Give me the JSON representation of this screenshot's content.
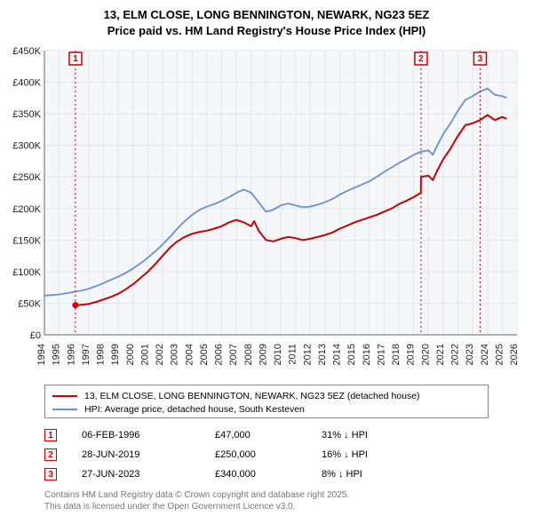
{
  "title_line1": "13, ELM CLOSE, LONG BENNINGTON, NEWARK, NG23 5EZ",
  "title_line2": "Price paid vs. HM Land Registry's House Price Index (HPI)",
  "chart": {
    "type": "line",
    "background_color": "#ffffff",
    "plot_bg_color": "#f5f7fa",
    "grid_color": "#e3e6ea",
    "axis_color": "#666666",
    "tick_font_size": 11,
    "x_years": [
      1994,
      1995,
      1996,
      1997,
      1998,
      1999,
      2000,
      2001,
      2002,
      2003,
      2004,
      2005,
      2006,
      2007,
      2008,
      2009,
      2010,
      2011,
      2012,
      2013,
      2014,
      2015,
      2016,
      2017,
      2018,
      2019,
      2020,
      2021,
      2022,
      2023,
      2024,
      2025,
      2026
    ],
    "y_ticks": [
      "£0",
      "£50K",
      "£100K",
      "£150K",
      "£200K",
      "£250K",
      "£300K",
      "£350K",
      "£400K",
      "£450K"
    ],
    "ylim": [
      0,
      450000
    ],
    "xlim": [
      1994,
      2026
    ],
    "series": {
      "price_paid": {
        "color": "#cc0000",
        "width": 2,
        "points": [
          [
            1996.1,
            47000
          ],
          [
            1996.5,
            47500
          ],
          [
            1997,
            49000
          ],
          [
            1997.5,
            52000
          ],
          [
            1998,
            56000
          ],
          [
            1998.5,
            60000
          ],
          [
            1999,
            65000
          ],
          [
            1999.5,
            72000
          ],
          [
            2000,
            80000
          ],
          [
            2000.5,
            90000
          ],
          [
            2001,
            100000
          ],
          [
            2001.5,
            112000
          ],
          [
            2002,
            125000
          ],
          [
            2002.5,
            138000
          ],
          [
            2003,
            148000
          ],
          [
            2003.5,
            155000
          ],
          [
            2004,
            160000
          ],
          [
            2004.5,
            163000
          ],
          [
            2005,
            165000
          ],
          [
            2005.5,
            168000
          ],
          [
            2006,
            172000
          ],
          [
            2006.5,
            178000
          ],
          [
            2007,
            182000
          ],
          [
            2007.5,
            178000
          ],
          [
            2008,
            172000
          ],
          [
            2008.2,
            180000
          ],
          [
            2008.5,
            165000
          ],
          [
            2009,
            150000
          ],
          [
            2009.5,
            148000
          ],
          [
            2010,
            152000
          ],
          [
            2010.5,
            155000
          ],
          [
            2011,
            153000
          ],
          [
            2011.5,
            150000
          ],
          [
            2012,
            152000
          ],
          [
            2012.5,
            155000
          ],
          [
            2013,
            158000
          ],
          [
            2013.5,
            162000
          ],
          [
            2014,
            168000
          ],
          [
            2014.5,
            173000
          ],
          [
            2015,
            178000
          ],
          [
            2015.5,
            182000
          ],
          [
            2016,
            186000
          ],
          [
            2016.5,
            190000
          ],
          [
            2017,
            195000
          ],
          [
            2017.5,
            200000
          ],
          [
            2018,
            207000
          ],
          [
            2018.5,
            212000
          ],
          [
            2019,
            218000
          ],
          [
            2019.49,
            225000
          ],
          [
            2019.5,
            250000
          ],
          [
            2020,
            252000
          ],
          [
            2020.3,
            245000
          ],
          [
            2020.6,
            260000
          ],
          [
            2021,
            278000
          ],
          [
            2021.5,
            295000
          ],
          [
            2022,
            315000
          ],
          [
            2022.5,
            332000
          ],
          [
            2023,
            335000
          ],
          [
            2023.49,
            340000
          ],
          [
            2023.5,
            340000
          ],
          [
            2024,
            348000
          ],
          [
            2024.5,
            340000
          ],
          [
            2025,
            345000
          ],
          [
            2025.3,
            342000
          ]
        ]
      },
      "hpi": {
        "color": "#6a8fd4",
        "width": 1.8,
        "points": [
          [
            1994,
            62000
          ],
          [
            1994.5,
            63000
          ],
          [
            1995,
            64000
          ],
          [
            1995.5,
            66000
          ],
          [
            1996,
            68000
          ],
          [
            1996.5,
            70000
          ],
          [
            1997,
            73000
          ],
          [
            1997.5,
            77000
          ],
          [
            1998,
            82000
          ],
          [
            1998.5,
            87000
          ],
          [
            1999,
            92000
          ],
          [
            1999.5,
            98000
          ],
          [
            2000,
            105000
          ],
          [
            2000.5,
            113000
          ],
          [
            2001,
            122000
          ],
          [
            2001.5,
            132000
          ],
          [
            2002,
            143000
          ],
          [
            2002.5,
            155000
          ],
          [
            2003,
            168000
          ],
          [
            2003.5,
            180000
          ],
          [
            2004,
            190000
          ],
          [
            2004.5,
            198000
          ],
          [
            2005,
            203000
          ],
          [
            2005.5,
            207000
          ],
          [
            2006,
            212000
          ],
          [
            2006.5,
            218000
          ],
          [
            2007,
            225000
          ],
          [
            2007.5,
            230000
          ],
          [
            2008,
            225000
          ],
          [
            2008.5,
            210000
          ],
          [
            2009,
            195000
          ],
          [
            2009.5,
            198000
          ],
          [
            2010,
            205000
          ],
          [
            2010.5,
            208000
          ],
          [
            2011,
            205000
          ],
          [
            2011.5,
            202000
          ],
          [
            2012,
            203000
          ],
          [
            2012.5,
            206000
          ],
          [
            2013,
            210000
          ],
          [
            2013.5,
            215000
          ],
          [
            2014,
            222000
          ],
          [
            2014.5,
            228000
          ],
          [
            2015,
            233000
          ],
          [
            2015.5,
            238000
          ],
          [
            2016,
            243000
          ],
          [
            2016.5,
            250000
          ],
          [
            2017,
            258000
          ],
          [
            2017.5,
            265000
          ],
          [
            2018,
            272000
          ],
          [
            2018.5,
            278000
          ],
          [
            2019,
            285000
          ],
          [
            2019.5,
            290000
          ],
          [
            2020,
            292000
          ],
          [
            2020.3,
            285000
          ],
          [
            2020.6,
            300000
          ],
          [
            2021,
            318000
          ],
          [
            2021.5,
            335000
          ],
          [
            2022,
            355000
          ],
          [
            2022.5,
            372000
          ],
          [
            2023,
            378000
          ],
          [
            2023.5,
            385000
          ],
          [
            2024,
            390000
          ],
          [
            2024.5,
            380000
          ],
          [
            2025,
            378000
          ],
          [
            2025.3,
            375000
          ]
        ]
      }
    },
    "markers": [
      {
        "n": "1",
        "year": 1996.1
      },
      {
        "n": "2",
        "year": 2019.5
      },
      {
        "n": "3",
        "year": 2023.5
      }
    ]
  },
  "legend": [
    {
      "color": "#cc0000",
      "label": "13, ELM CLOSE, LONG BENNINGTON, NEWARK, NG23 5EZ (detached house)"
    },
    {
      "color": "#6a8fd4",
      "label": "HPI: Average price, detached house, South Kesteven"
    }
  ],
  "transactions": [
    {
      "n": "1",
      "date": "06-FEB-1996",
      "price": "£47,000",
      "diff": "31% ↓ HPI"
    },
    {
      "n": "2",
      "date": "28-JUN-2019",
      "price": "£250,000",
      "diff": "16% ↓ HPI"
    },
    {
      "n": "3",
      "date": "27-JUN-2023",
      "price": "£340,000",
      "diff": "8% ↓ HPI"
    }
  ],
  "footer_line1": "Contains HM Land Registry data © Crown copyright and database right 2025.",
  "footer_line2": "This data is licensed under the Open Government Licence v3.0."
}
